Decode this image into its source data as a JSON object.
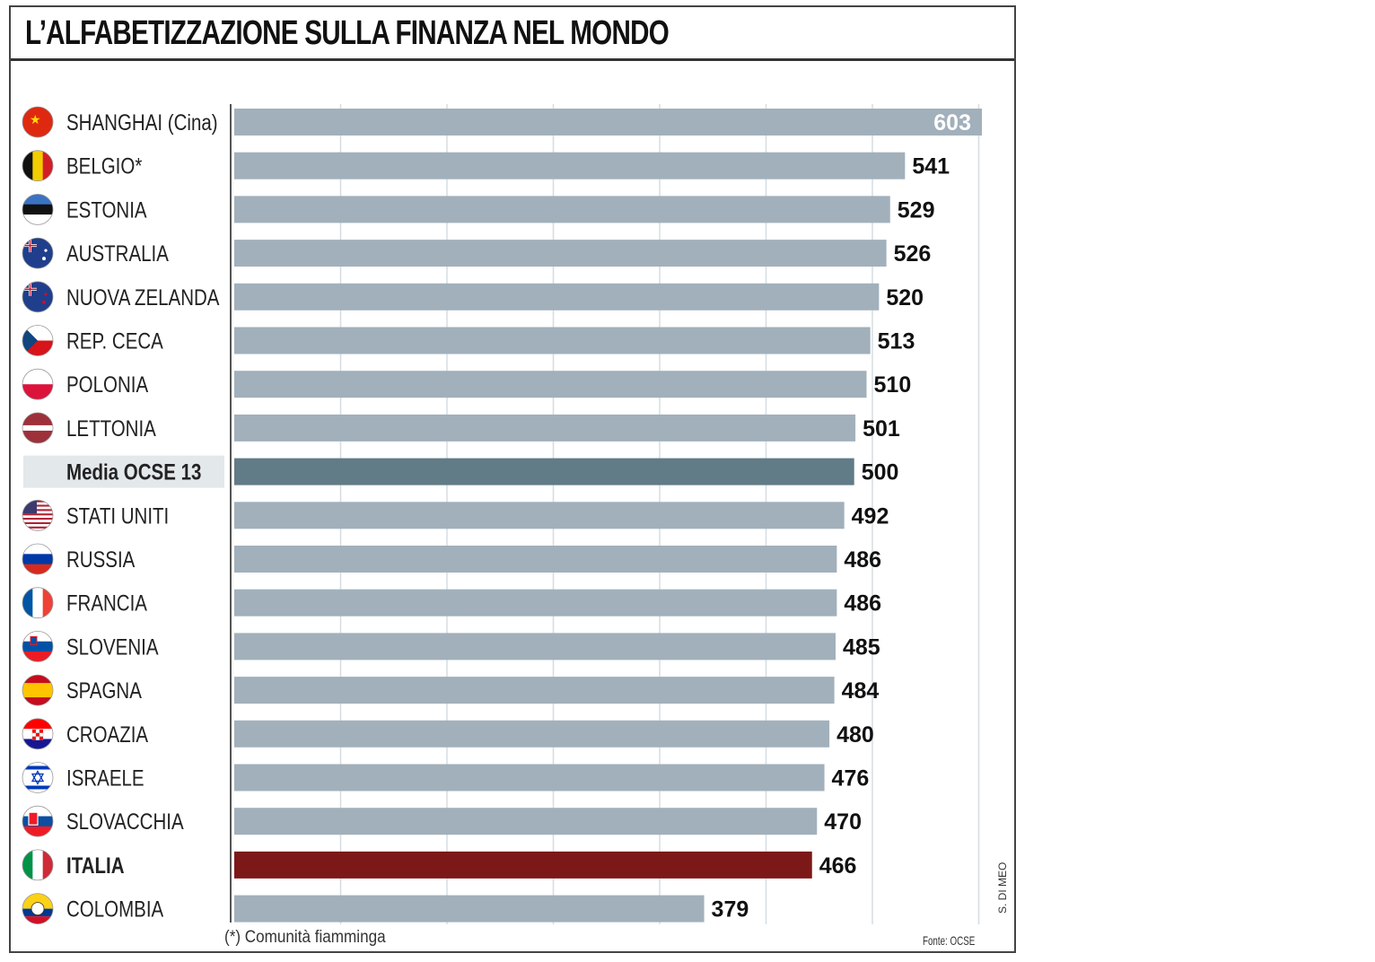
{
  "title": "L’ALFABETIZZAZIONE SULLA FINANZA NEL MONDO",
  "footnote": "(*) Comunità fiamminga",
  "source": "Fonte: OCSE",
  "credit": "S. DI MEO",
  "colors": {
    "bar": "#a1b0bb",
    "average": "#617b87",
    "highlight": "#7d1818",
    "grid": "#d5dde2",
    "avg_label_bg": "#e3e8eb"
  },
  "chart_data": {
    "type": "bar",
    "orientation": "horizontal",
    "title": "L’ALFABETIZZAZIONE SULLA FINANZA NEL MONDO",
    "xlabel": "",
    "ylabel": "",
    "xlim": [
      0,
      603
    ],
    "grid": true,
    "categories": [
      "SHANGHAI (Cina)",
      "BELGIO*",
      "ESTONIA",
      "AUSTRALIA",
      "NUOVA ZELANDA",
      "REP. CECA",
      "POLONIA",
      "LETTONIA",
      "Media OCSE 13",
      "STATI UNITI",
      "RUSSIA",
      "FRANCIA",
      "SLOVENIA",
      "SPAGNA",
      "CROAZIA",
      "ISRAELE",
      "SLOVACCHIA",
      "ITALIA",
      "COLOMBIA"
    ],
    "values": [
      603,
      541,
      529,
      526,
      520,
      513,
      510,
      501,
      500,
      492,
      486,
      486,
      485,
      484,
      480,
      476,
      470,
      466,
      379
    ],
    "value_labels": [
      "603",
      "541",
      "529",
      "526",
      "520",
      "513",
      "510",
      "501",
      "500",
      "492",
      "486",
      "486",
      "485",
      "484",
      "480",
      "476",
      "470",
      "466",
      "379"
    ],
    "highlight": [
      "",
      "",
      "",
      "",
      "",
      "",
      "",
      "",
      "average",
      "",
      "",
      "",
      "",
      "",
      "",
      "",
      "",
      "italy",
      ""
    ],
    "flags": [
      "china-flag-icon",
      "belgium-flag-icon",
      "estonia-flag-icon",
      "australia-flag-icon",
      "new-zealand-flag-icon",
      "czech-flag-icon",
      "poland-flag-icon",
      "latvia-flag-icon",
      "",
      "usa-flag-icon",
      "russia-flag-icon",
      "france-flag-icon",
      "slovenia-flag-icon",
      "spain-flag-icon",
      "croatia-flag-icon",
      "israel-flag-icon",
      "slovakia-flag-icon",
      "italy-flag-icon",
      "colombia-flag-icon"
    ]
  }
}
